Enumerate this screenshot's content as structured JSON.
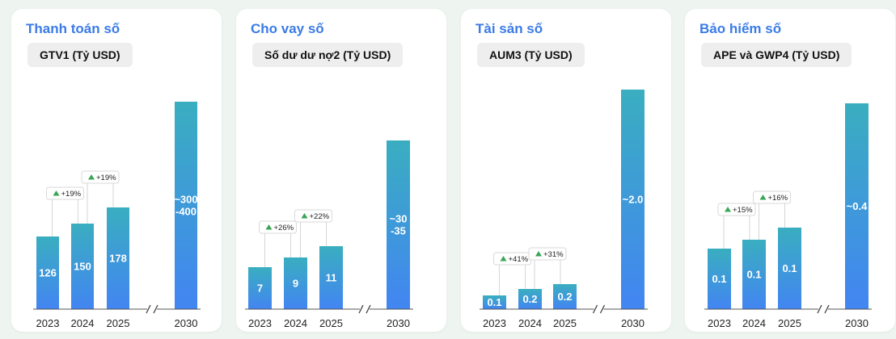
{
  "colors": {
    "title": "#3a7be6",
    "bar_top": "#3aaec0",
    "bar_bottom": "#4285f2",
    "growth": "#3aa655"
  },
  "panels": [
    {
      "title": "Thanh toán số",
      "subtitle": "GTV1 (Tỷ USD)"
    },
    {
      "title": "Cho vay số",
      "subtitle": "Số dư dư nợ2 (Tỷ USD)"
    },
    {
      "title": "Tài sản số",
      "subtitle": "AUM3 (Tỷ USD)"
    },
    {
      "title": "Bảo hiểm số",
      "subtitle": "APE và GWP4 (Tỷ USD)"
    }
  ],
  "chart_data": [
    {
      "type": "bar",
      "title": "Thanh toán số",
      "ylabel": "GTV1 (Tỷ USD)",
      "categories": [
        "2023",
        "2024",
        "2025",
        "2030"
      ],
      "values": [
        126,
        150,
        178,
        350
      ],
      "value_labels": [
        "126",
        "150",
        "178",
        "~300\n-400"
      ],
      "growth_labels": [
        "+19%",
        "+19%"
      ],
      "axis_break_between": [
        "2025",
        "2030"
      ]
    },
    {
      "type": "bar",
      "title": "Cho vay số",
      "ylabel": "Số dư dư nợ2 (Tỷ USD)",
      "categories": [
        "2023",
        "2024",
        "2025",
        "2030"
      ],
      "values": [
        7,
        9,
        11,
        32.5
      ],
      "value_labels": [
        "7",
        "9",
        "11",
        "~30\n-35"
      ],
      "growth_labels": [
        "+26%",
        "+22%"
      ],
      "axis_break_between": [
        "2025",
        "2030"
      ]
    },
    {
      "type": "bar",
      "title": "Tài sản số",
      "ylabel": "AUM3 (Tỷ USD)",
      "categories": [
        "2023",
        "2024",
        "2025",
        "2030"
      ],
      "values": [
        0.1,
        0.2,
        0.2,
        2.0
      ],
      "value_labels": [
        "0.1",
        "0.2",
        "0.2",
        "~2.0"
      ],
      "growth_labels": [
        "+41%",
        "+31%"
      ],
      "axis_break_between": [
        "2025",
        "2030"
      ]
    },
    {
      "type": "bar",
      "title": "Bảo hiểm số",
      "ylabel": "APE và GWP4 (Tỷ USD)",
      "categories": [
        "2023",
        "2024",
        "2025",
        "2030"
      ],
      "values": [
        0.1,
        0.1,
        0.1,
        0.4
      ],
      "value_labels": [
        "0.1",
        "0.1",
        "0.1",
        "~0.4"
      ],
      "growth_labels": [
        "+15%",
        "+16%"
      ],
      "axis_break_between": [
        "2025",
        "2030"
      ]
    }
  ]
}
